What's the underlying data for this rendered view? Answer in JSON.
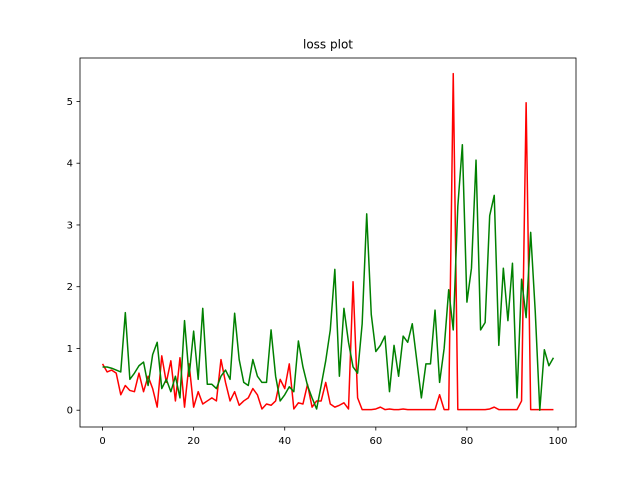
{
  "chart_data": {
    "type": "line",
    "title": "loss plot",
    "xlabel": "",
    "ylabel": "",
    "xlim": [
      -4.95,
      103.95
    ],
    "ylim": [
      -0.272,
      5.704
    ],
    "xticks": [
      0,
      20,
      40,
      60,
      80,
      100
    ],
    "yticks": [
      0,
      1,
      2,
      3,
      4,
      5
    ],
    "grid": false,
    "legend": "none",
    "x": [
      0,
      1,
      2,
      3,
      4,
      5,
      6,
      7,
      8,
      9,
      10,
      11,
      12,
      13,
      14,
      15,
      16,
      17,
      18,
      19,
      20,
      21,
      22,
      23,
      24,
      25,
      26,
      27,
      28,
      29,
      30,
      31,
      32,
      33,
      34,
      35,
      36,
      37,
      38,
      39,
      40,
      41,
      42,
      43,
      44,
      45,
      46,
      47,
      48,
      49,
      50,
      51,
      52,
      53,
      54,
      55,
      56,
      57,
      58,
      59,
      60,
      61,
      62,
      63,
      64,
      65,
      66,
      67,
      68,
      69,
      70,
      71,
      72,
      73,
      74,
      75,
      76,
      77,
      78,
      79,
      80,
      81,
      82,
      83,
      84,
      85,
      86,
      87,
      88,
      89,
      90,
      91,
      92,
      93,
      94,
      95,
      96,
      97,
      98,
      99
    ],
    "series": [
      {
        "color": "#ff0000",
        "values": [
          0.75,
          0.62,
          0.65,
          0.6,
          0.25,
          0.4,
          0.32,
          0.3,
          0.6,
          0.3,
          0.55,
          0.35,
          0.05,
          0.88,
          0.45,
          0.8,
          0.15,
          0.85,
          0.05,
          0.75,
          0.05,
          0.3,
          0.1,
          0.15,
          0.2,
          0.15,
          0.82,
          0.45,
          0.15,
          0.3,
          0.08,
          0.15,
          0.2,
          0.35,
          0.25,
          0.02,
          0.1,
          0.08,
          0.15,
          0.5,
          0.35,
          0.75,
          0.02,
          0.12,
          0.1,
          0.42,
          0.05,
          0.15,
          0.15,
          0.45,
          0.1,
          0.05,
          0.08,
          0.12,
          0.02,
          2.08,
          0.2,
          0.01,
          0.01,
          0.01,
          0.02,
          0.05,
          0.01,
          0.02,
          0.01,
          0.01,
          0.02,
          0.01,
          0.01,
          0.01,
          0.01,
          0.01,
          0.01,
          0.01,
          0.25,
          0.01,
          0.01,
          5.45,
          0.01,
          0.01,
          0.01,
          0.01,
          0.01,
          0.01,
          0.01,
          0.02,
          0.05,
          0.01,
          0.01,
          0.01,
          0.01,
          0.01,
          0.15,
          4.98,
          0.01,
          0.01,
          0.01,
          0.01,
          0.01,
          0.01
        ]
      },
      {
        "color": "#008000",
        "values": [
          0.7,
          0.7,
          0.68,
          0.65,
          0.62,
          1.58,
          0.5,
          0.6,
          0.72,
          0.78,
          0.4,
          0.9,
          1.1,
          0.35,
          0.5,
          0.3,
          0.55,
          0.2,
          1.45,
          0.55,
          1.28,
          0.5,
          1.65,
          0.42,
          0.42,
          0.35,
          0.55,
          0.65,
          0.5,
          1.57,
          0.82,
          0.45,
          0.4,
          0.82,
          0.55,
          0.45,
          0.45,
          1.3,
          0.55,
          0.15,
          0.25,
          0.38,
          0.3,
          1.12,
          0.7,
          0.4,
          0.2,
          0.02,
          0.4,
          0.8,
          1.3,
          2.28,
          0.55,
          1.65,
          1.1,
          0.7,
          0.6,
          1.4,
          3.18,
          1.55,
          0.95,
          1.05,
          1.2,
          0.3,
          1.05,
          0.55,
          1.2,
          1.1,
          1.4,
          0.8,
          0.2,
          0.75,
          0.75,
          1.62,
          0.45,
          1.0,
          1.95,
          1.3,
          3.3,
          4.3,
          1.75,
          2.3,
          4.05,
          1.3,
          1.42,
          3.15,
          3.48,
          1.05,
          2.3,
          1.45,
          2.38,
          0.2,
          2.12,
          1.5,
          2.88,
          1.6,
          0.0,
          0.98,
          0.72,
          0.85
        ]
      }
    ]
  }
}
